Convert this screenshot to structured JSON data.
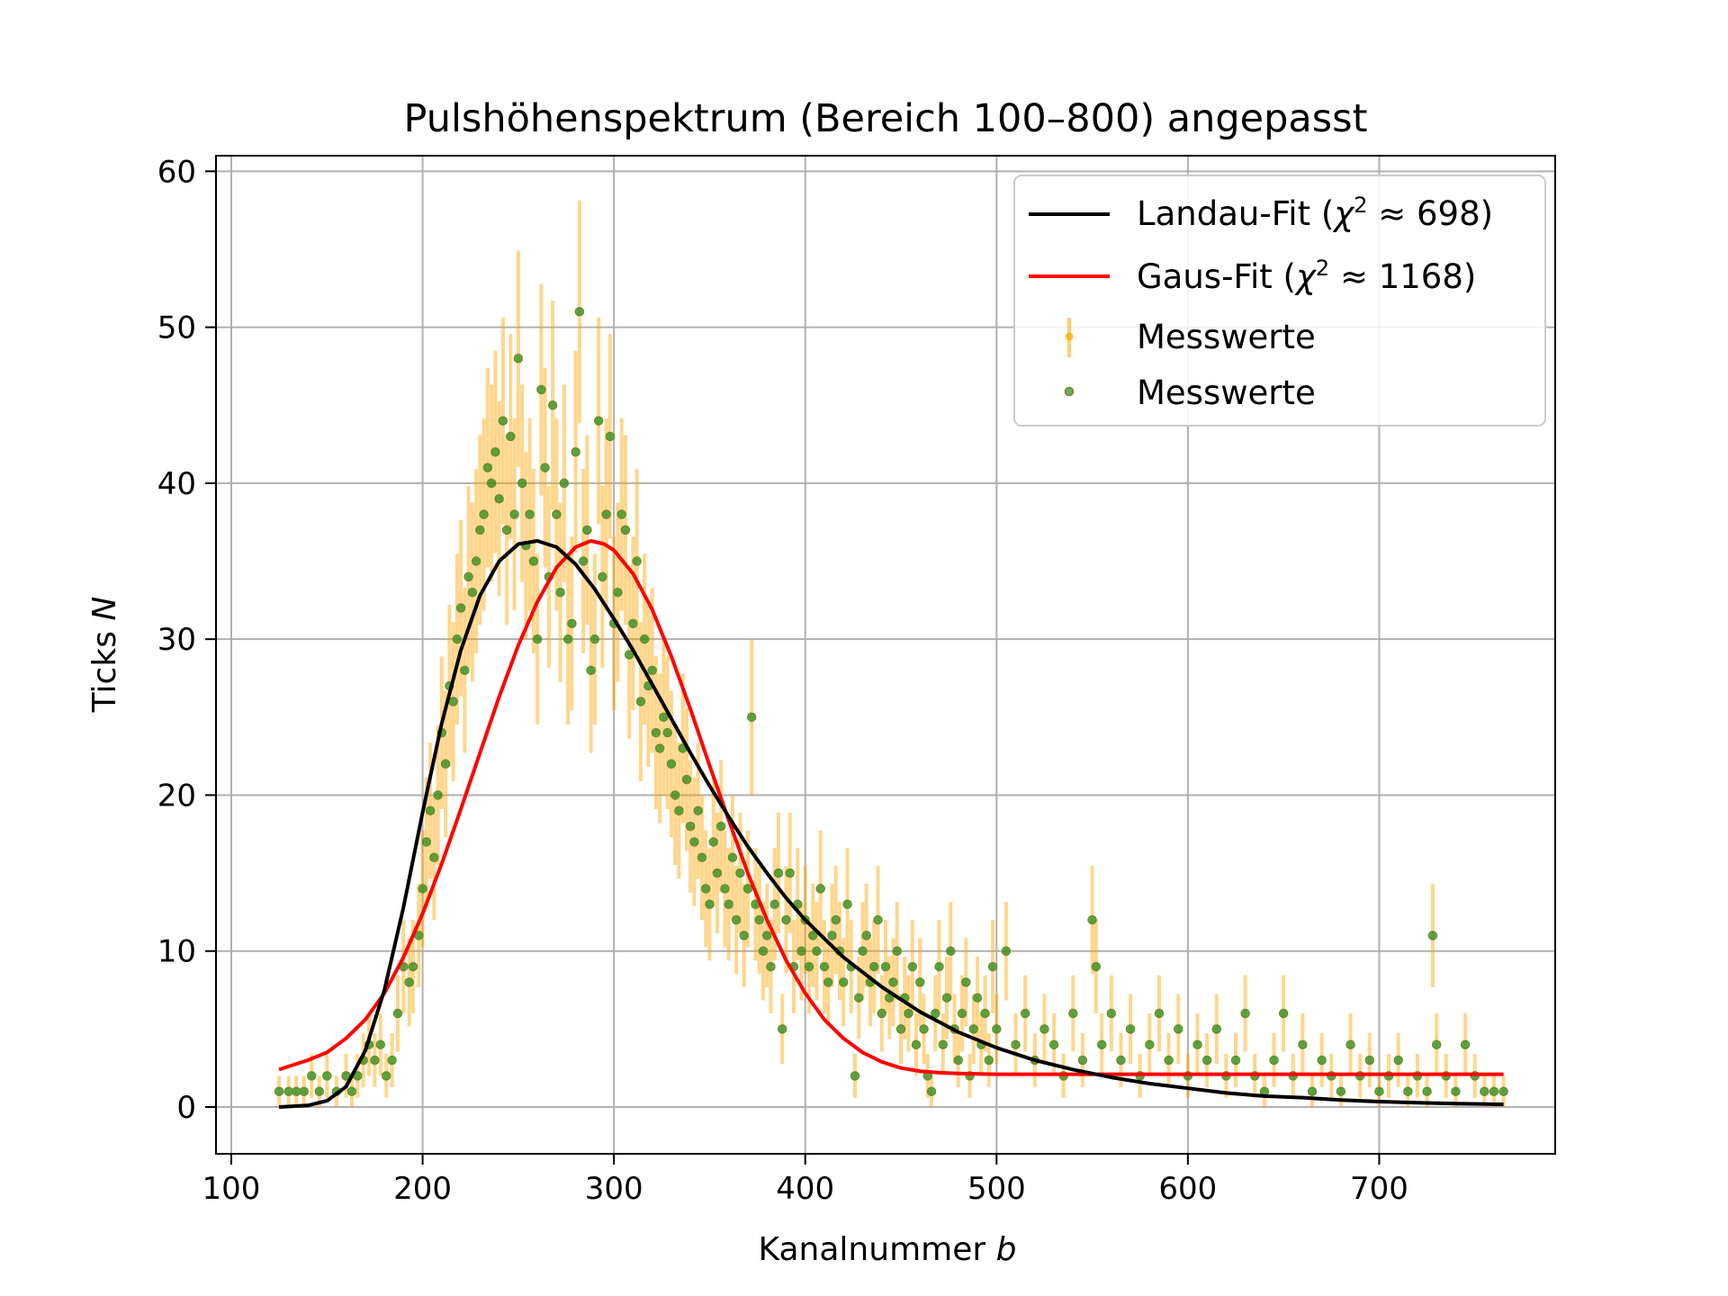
{
  "chart_data": {
    "type": "scatter",
    "title": "Pulshöhenspektrum (Bereich 100–800) angepasst",
    "xlabel": "Kanalnummer",
    "xlabel_var": "b",
    "ylabel": "Ticks",
    "ylabel_var": "N",
    "xlim": [
      92,
      792
    ],
    "ylim": [
      -3,
      61
    ],
    "xticks": [
      100,
      200,
      300,
      400,
      500,
      600,
      700
    ],
    "yticks": [
      0,
      10,
      20,
      30,
      40,
      50,
      60
    ],
    "grid": true,
    "legend_position": "top-right",
    "legend": [
      {
        "name": "Landau-Fit",
        "chi2": "698",
        "label_prefix": "Landau-Fit (",
        "label_suffix": "698)",
        "style": "line",
        "color": "#000000"
      },
      {
        "name": "Gaus-Fit",
        "chi2": "1168",
        "label_prefix": "Gaus-Fit (",
        "label_suffix": "1168)",
        "style": "line",
        "color": "#ff0000"
      },
      {
        "name": "Messwerte",
        "style": "errorbar",
        "color": "#ffa500"
      },
      {
        "name": "Messwerte",
        "style": "point",
        "color": "#228b22"
      }
    ],
    "chi_symbol": "χ",
    "approx_symbol": " ≈ ",
    "series": [
      {
        "name": "Landau-Fit",
        "kind": "line",
        "color": "#000000",
        "points": [
          [
            125,
            0.0
          ],
          [
            140,
            0.1
          ],
          [
            150,
            0.4
          ],
          [
            160,
            1.3
          ],
          [
            170,
            3.6
          ],
          [
            180,
            7.5
          ],
          [
            190,
            12.8
          ],
          [
            200,
            18.9
          ],
          [
            210,
            24.6
          ],
          [
            220,
            29.3
          ],
          [
            230,
            32.8
          ],
          [
            240,
            35.0
          ],
          [
            250,
            36.1
          ],
          [
            260,
            36.3
          ],
          [
            270,
            35.9
          ],
          [
            280,
            34.8
          ],
          [
            290,
            33.2
          ],
          [
            300,
            31.3
          ],
          [
            310,
            29.3
          ],
          [
            320,
            27.1
          ],
          [
            330,
            24.9
          ],
          [
            340,
            22.7
          ],
          [
            350,
            20.6
          ],
          [
            360,
            18.6
          ],
          [
            370,
            16.7
          ],
          [
            380,
            15.0
          ],
          [
            390,
            13.4
          ],
          [
            400,
            12.0
          ],
          [
            420,
            9.6
          ],
          [
            440,
            7.7
          ],
          [
            460,
            6.1
          ],
          [
            480,
            4.8
          ],
          [
            500,
            3.8
          ],
          [
            520,
            3.0
          ],
          [
            540,
            2.4
          ],
          [
            560,
            1.9
          ],
          [
            580,
            1.5
          ],
          [
            600,
            1.2
          ],
          [
            620,
            0.9
          ],
          [
            640,
            0.7
          ],
          [
            660,
            0.6
          ],
          [
            680,
            0.45
          ],
          [
            700,
            0.35
          ],
          [
            720,
            0.28
          ],
          [
            740,
            0.22
          ],
          [
            765,
            0.17
          ]
        ]
      },
      {
        "name": "Gaus-Fit",
        "kind": "line",
        "color": "#ff0000",
        "points": [
          [
            125,
            2.4
          ],
          [
            140,
            3.0
          ],
          [
            150,
            3.5
          ],
          [
            160,
            4.4
          ],
          [
            170,
            5.6
          ],
          [
            180,
            7.3
          ],
          [
            190,
            9.6
          ],
          [
            200,
            12.4
          ],
          [
            210,
            15.6
          ],
          [
            220,
            19.1
          ],
          [
            230,
            22.7
          ],
          [
            240,
            26.3
          ],
          [
            250,
            29.6
          ],
          [
            260,
            32.4
          ],
          [
            270,
            34.6
          ],
          [
            280,
            35.9
          ],
          [
            288,
            36.3
          ],
          [
            295,
            36.1
          ],
          [
            300,
            35.7
          ],
          [
            310,
            34.2
          ],
          [
            320,
            31.9
          ],
          [
            330,
            28.9
          ],
          [
            340,
            25.5
          ],
          [
            350,
            21.9
          ],
          [
            360,
            18.4
          ],
          [
            370,
            15.0
          ],
          [
            380,
            12.0
          ],
          [
            390,
            9.4
          ],
          [
            400,
            7.3
          ],
          [
            410,
            5.6
          ],
          [
            420,
            4.4
          ],
          [
            430,
            3.5
          ],
          [
            440,
            2.9
          ],
          [
            450,
            2.5
          ],
          [
            460,
            2.3
          ],
          [
            470,
            2.2
          ],
          [
            480,
            2.15
          ],
          [
            500,
            2.1
          ],
          [
            600,
            2.1
          ],
          [
            700,
            2.1
          ],
          [
            765,
            2.1
          ]
        ]
      },
      {
        "name": "Messwerte",
        "kind": "points",
        "color": "#228b22",
        "errorbar_color": "#ffa500",
        "points": [
          [
            125,
            1
          ],
          [
            130,
            1
          ],
          [
            134,
            1
          ],
          [
            138,
            1
          ],
          [
            142,
            2
          ],
          [
            146,
            1
          ],
          [
            150,
            2
          ],
          [
            155,
            1
          ],
          [
            160,
            2
          ],
          [
            163,
            1
          ],
          [
            166,
            2
          ],
          [
            169,
            3
          ],
          [
            172,
            4
          ],
          [
            175,
            3
          ],
          [
            178,
            4
          ],
          [
            181,
            2
          ],
          [
            184,
            3
          ],
          [
            187,
            6
          ],
          [
            190,
            9
          ],
          [
            193,
            8
          ],
          [
            195,
            9
          ],
          [
            198,
            11
          ],
          [
            200,
            14
          ],
          [
            202,
            17
          ],
          [
            204,
            19
          ],
          [
            206,
            16
          ],
          [
            208,
            20
          ],
          [
            210,
            24
          ],
          [
            212,
            22
          ],
          [
            214,
            27
          ],
          [
            216,
            26
          ],
          [
            218,
            30
          ],
          [
            220,
            32
          ],
          [
            222,
            28
          ],
          [
            224,
            34
          ],
          [
            226,
            33
          ],
          [
            228,
            35
          ],
          [
            230,
            37
          ],
          [
            232,
            38
          ],
          [
            234,
            41
          ],
          [
            236,
            40
          ],
          [
            238,
            42
          ],
          [
            240,
            39
          ],
          [
            242,
            44
          ],
          [
            244,
            37
          ],
          [
            246,
            43
          ],
          [
            248,
            38
          ],
          [
            250,
            48
          ],
          [
            252,
            40
          ],
          [
            254,
            36
          ],
          [
            256,
            38
          ],
          [
            258,
            35
          ],
          [
            260,
            30
          ],
          [
            262,
            46
          ],
          [
            264,
            41
          ],
          [
            266,
            34
          ],
          [
            268,
            45
          ],
          [
            270,
            38
          ],
          [
            272,
            33
          ],
          [
            274,
            40
          ],
          [
            276,
            30
          ],
          [
            278,
            31
          ],
          [
            280,
            42
          ],
          [
            282,
            51
          ],
          [
            284,
            35
          ],
          [
            286,
            37
          ],
          [
            288,
            28
          ],
          [
            290,
            30
          ],
          [
            292,
            44
          ],
          [
            294,
            34
          ],
          [
            296,
            38
          ],
          [
            298,
            43
          ],
          [
            300,
            31
          ],
          [
            302,
            33
          ],
          [
            304,
            38
          ],
          [
            306,
            37
          ],
          [
            308,
            29
          ],
          [
            310,
            31
          ],
          [
            312,
            35
          ],
          [
            314,
            26
          ],
          [
            316,
            30
          ],
          [
            318,
            27
          ],
          [
            320,
            28
          ],
          [
            322,
            24
          ],
          [
            324,
            23
          ],
          [
            326,
            25
          ],
          [
            328,
            24
          ],
          [
            330,
            22
          ],
          [
            332,
            20
          ],
          [
            334,
            19
          ],
          [
            336,
            23
          ],
          [
            338,
            21
          ],
          [
            340,
            18
          ],
          [
            342,
            17
          ],
          [
            344,
            19
          ],
          [
            346,
            16
          ],
          [
            348,
            14
          ],
          [
            350,
            13
          ],
          [
            352,
            17
          ],
          [
            354,
            15
          ],
          [
            356,
            18
          ],
          [
            358,
            14
          ],
          [
            360,
            13
          ],
          [
            362,
            16
          ],
          [
            364,
            12
          ],
          [
            366,
            15
          ],
          [
            368,
            11
          ],
          [
            370,
            14
          ],
          [
            372,
            25
          ],
          [
            374,
            13
          ],
          [
            376,
            12
          ],
          [
            378,
            10
          ],
          [
            380,
            11
          ],
          [
            382,
            9
          ],
          [
            384,
            13
          ],
          [
            386,
            15
          ],
          [
            388,
            5
          ],
          [
            390,
            12
          ],
          [
            392,
            15
          ],
          [
            394,
            9
          ],
          [
            396,
            13
          ],
          [
            398,
            10
          ],
          [
            400,
            12
          ],
          [
            402,
            9
          ],
          [
            404,
            11
          ],
          [
            406,
            10
          ],
          [
            408,
            14
          ],
          [
            410,
            9
          ],
          [
            412,
            8
          ],
          [
            414,
            11
          ],
          [
            416,
            12
          ],
          [
            418,
            10
          ],
          [
            420,
            8
          ],
          [
            422,
            13
          ],
          [
            424,
            9
          ],
          [
            426,
            2
          ],
          [
            428,
            7
          ],
          [
            430,
            10
          ],
          [
            432,
            11
          ],
          [
            434,
            8
          ],
          [
            436,
            9
          ],
          [
            438,
            12
          ],
          [
            440,
            6
          ],
          [
            442,
            9
          ],
          [
            444,
            7
          ],
          [
            446,
            8
          ],
          [
            448,
            10
          ],
          [
            450,
            5
          ],
          [
            452,
            7
          ],
          [
            454,
            6
          ],
          [
            456,
            9
          ],
          [
            458,
            4
          ],
          [
            460,
            8
          ],
          [
            462,
            5
          ],
          [
            464,
            2
          ],
          [
            466,
            1
          ],
          [
            468,
            6
          ],
          [
            470,
            9
          ],
          [
            472,
            4
          ],
          [
            474,
            7
          ],
          [
            476,
            10
          ],
          [
            478,
            5
          ],
          [
            480,
            3
          ],
          [
            482,
            6
          ],
          [
            484,
            8
          ],
          [
            486,
            2
          ],
          [
            488,
            5
          ],
          [
            490,
            7
          ],
          [
            492,
            4
          ],
          [
            494,
            6
          ],
          [
            496,
            3
          ],
          [
            498,
            9
          ],
          [
            500,
            5
          ],
          [
            505,
            10
          ],
          [
            510,
            4
          ],
          [
            515,
            6
          ],
          [
            520,
            3
          ],
          [
            525,
            5
          ],
          [
            530,
            4
          ],
          [
            535,
            2
          ],
          [
            540,
            6
          ],
          [
            545,
            3
          ],
          [
            550,
            12
          ],
          [
            552,
            9
          ],
          [
            555,
            4
          ],
          [
            560,
            6
          ],
          [
            565,
            3
          ],
          [
            570,
            5
          ],
          [
            575,
            2
          ],
          [
            580,
            4
          ],
          [
            585,
            6
          ],
          [
            590,
            3
          ],
          [
            595,
            5
          ],
          [
            600,
            2
          ],
          [
            605,
            4
          ],
          [
            610,
            3
          ],
          [
            615,
            5
          ],
          [
            620,
            2
          ],
          [
            625,
            3
          ],
          [
            630,
            6
          ],
          [
            635,
            2
          ],
          [
            640,
            1
          ],
          [
            645,
            3
          ],
          [
            650,
            6
          ],
          [
            655,
            2
          ],
          [
            660,
            4
          ],
          [
            665,
            1
          ],
          [
            670,
            3
          ],
          [
            675,
            2
          ],
          [
            680,
            1
          ],
          [
            685,
            4
          ],
          [
            690,
            2
          ],
          [
            695,
            3
          ],
          [
            700,
            1
          ],
          [
            705,
            2
          ],
          [
            710,
            3
          ],
          [
            715,
            1
          ],
          [
            720,
            2
          ],
          [
            725,
            1
          ],
          [
            728,
            11
          ],
          [
            730,
            4
          ],
          [
            735,
            2
          ],
          [
            740,
            1
          ],
          [
            745,
            4
          ],
          [
            750,
            2
          ],
          [
            755,
            1
          ],
          [
            760,
            1
          ],
          [
            765,
            1
          ]
        ]
      }
    ]
  }
}
